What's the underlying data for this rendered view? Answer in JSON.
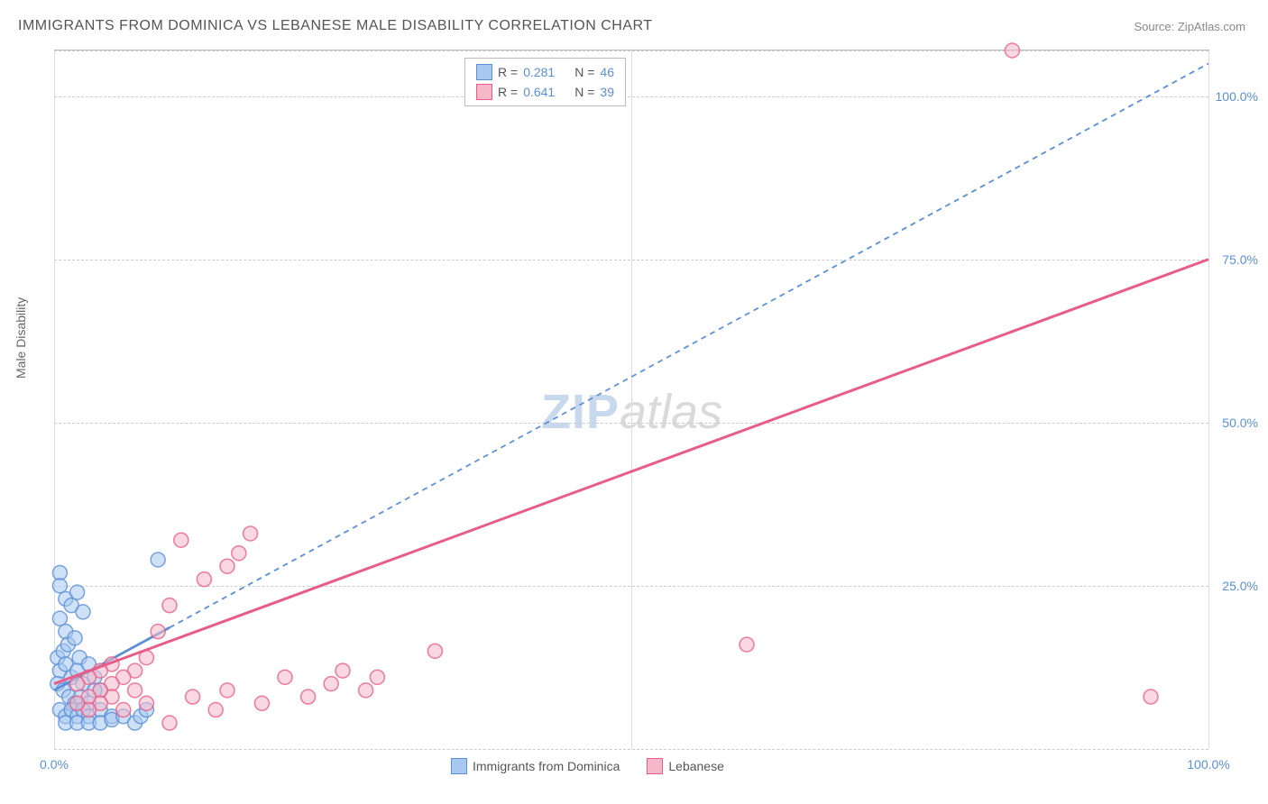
{
  "title": "IMMIGRANTS FROM DOMINICA VS LEBANESE MALE DISABILITY CORRELATION CHART",
  "source_label": "Source: ",
  "source_name": "ZipAtlas.com",
  "y_axis_label": "Male Disability",
  "watermark_zip": "ZIP",
  "watermark_atlas": "atlas",
  "chart": {
    "type": "scatter",
    "xlim": [
      0,
      100
    ],
    "ylim": [
      0,
      107
    ],
    "x_ticks": [
      0,
      50,
      100
    ],
    "x_tick_labels": [
      "0.0%",
      "",
      "100.0%"
    ],
    "y_ticks": [
      25,
      50,
      75,
      100
    ],
    "y_tick_labels": [
      "25.0%",
      "50.0%",
      "75.0%",
      "100.0%"
    ],
    "y_grid": [
      0,
      25,
      50,
      75,
      100,
      107
    ],
    "x_grid": [
      0,
      50,
      100
    ],
    "background_color": "#ffffff",
    "grid_color": "#cccccc",
    "point_radius": 8,
    "point_opacity": 0.55,
    "point_stroke_width": 1.5
  },
  "series": [
    {
      "key": "dominica",
      "label": "Immigrants from Dominica",
      "fill": "#a8c8ef",
      "stroke": "#5b8fd6",
      "R_label": "R =",
      "R": "0.281",
      "N_label": "N =",
      "N": "46",
      "trend": {
        "x1": 0,
        "y1": 9,
        "x2": 100,
        "y2": 105,
        "solid_until_x": 10,
        "dash": "6,5",
        "width": 1.8
      },
      "points": [
        [
          0.5,
          27
        ],
        [
          0.5,
          25
        ],
        [
          1,
          23
        ],
        [
          1.5,
          22
        ],
        [
          0.5,
          20
        ],
        [
          1,
          18
        ],
        [
          2,
          24
        ],
        [
          2.5,
          21
        ],
        [
          0.3,
          14
        ],
        [
          0.8,
          15
        ],
        [
          1.2,
          16
        ],
        [
          1.8,
          17
        ],
        [
          2.2,
          14
        ],
        [
          0.5,
          12
        ],
        [
          1,
          13
        ],
        [
          1.5,
          11
        ],
        [
          2,
          12
        ],
        [
          2.5,
          10
        ],
        [
          3,
          13
        ],
        [
          3.5,
          11
        ],
        [
          4,
          9
        ],
        [
          0.3,
          10
        ],
        [
          0.8,
          9
        ],
        [
          1.3,
          8
        ],
        [
          1.8,
          7
        ],
        [
          2.3,
          8
        ],
        [
          3,
          7
        ],
        [
          3.5,
          9
        ],
        [
          0.5,
          6
        ],
        [
          1,
          5
        ],
        [
          1.5,
          6
        ],
        [
          2,
          5
        ],
        [
          2.5,
          6
        ],
        [
          3,
          5
        ],
        [
          4,
          6
        ],
        [
          5,
          5
        ],
        [
          1,
          4
        ],
        [
          2,
          4
        ],
        [
          3,
          4
        ],
        [
          4,
          4
        ],
        [
          5,
          4.5
        ],
        [
          6,
          5
        ],
        [
          7,
          4
        ],
        [
          7.5,
          5
        ],
        [
          9,
          29
        ],
        [
          8,
          6
        ]
      ]
    },
    {
      "key": "lebanese",
      "label": "Lebanese",
      "fill": "#f6b8c8",
      "stroke": "#e85d87",
      "R_label": "R =",
      "R": "0.641",
      "N_label": "N =",
      "N": "39",
      "trend": {
        "x1": 0,
        "y1": 10,
        "x2": 100,
        "y2": 75,
        "solid_until_x": 100,
        "dash": "",
        "width": 2
      },
      "points": [
        [
          83,
          107
        ],
        [
          95,
          8
        ],
        [
          60,
          16
        ],
        [
          33,
          15
        ],
        [
          28,
          11
        ],
        [
          27,
          9
        ],
        [
          25,
          12
        ],
        [
          24,
          10
        ],
        [
          22,
          8
        ],
        [
          20,
          11
        ],
        [
          18,
          7
        ],
        [
          17,
          33
        ],
        [
          16,
          30
        ],
        [
          15,
          28
        ],
        [
          15,
          9
        ],
        [
          14,
          6
        ],
        [
          13,
          26
        ],
        [
          12,
          8
        ],
        [
          11,
          32
        ],
        [
          10,
          22
        ],
        [
          9,
          18
        ],
        [
          8,
          14
        ],
        [
          8,
          7
        ],
        [
          7,
          12
        ],
        [
          7,
          9
        ],
        [
          6,
          11
        ],
        [
          6,
          6
        ],
        [
          5,
          13
        ],
        [
          5,
          10
        ],
        [
          5,
          8
        ],
        [
          4,
          12
        ],
        [
          4,
          9
        ],
        [
          4,
          7
        ],
        [
          3,
          11
        ],
        [
          3,
          8
        ],
        [
          3,
          6
        ],
        [
          2,
          10
        ],
        [
          2,
          7
        ],
        [
          10,
          4
        ]
      ]
    }
  ],
  "legend_bottom": [
    {
      "key": "dominica",
      "label": "Immigrants from Dominica"
    },
    {
      "key": "lebanese",
      "label": "Lebanese"
    }
  ]
}
